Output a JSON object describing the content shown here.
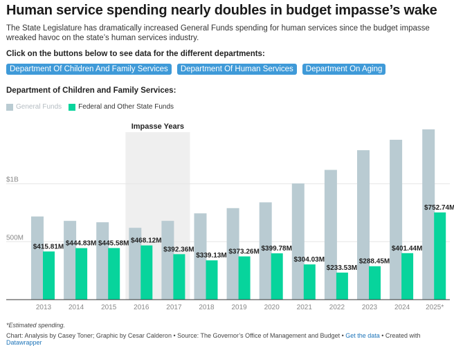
{
  "title": "Human service spending nearly doubles in budget impasse’s wake",
  "subtitle": "The State Legislature has dramatically increased General Funds spending for human services since the budget impasse wreaked havoc on the state’s human services industry.",
  "prompt": "Click on the buttons below to see data for the different departments:",
  "buttons": [
    "Department Of Children And Family Services",
    "Department Of Human Services",
    "Department On Aging"
  ],
  "department_title": "Department of Children and Family Services:",
  "legend": {
    "general": "General Funds",
    "federal": "Federal and Other State Funds"
  },
  "colors": {
    "general": "#b9cbd2",
    "federal": "#07d49c",
    "button": "#3f9ad8",
    "impasse": "#efefef"
  },
  "impasse_label": "Impasse Years",
  "footnote": "*Estimated spending.",
  "credits": {
    "prefix": "Chart: Analysis by Casey Toner; Graphic by Cesar Calderon • Source: The Governor’s Office of Management and Budget • ",
    "get_data": "Get the data",
    "middle": " • Created with ",
    "datawrapper": "Datawrapper"
  },
  "chart_data": {
    "type": "bar",
    "categories": [
      "2013",
      "2014",
      "2015",
      "2016",
      "2017",
      "2018",
      "2019",
      "2020",
      "2021",
      "2022",
      "2023",
      "2024",
      "2025*"
    ],
    "series": [
      {
        "name": "General Funds",
        "values": [
          718,
          680,
          668,
          620,
          680,
          745,
          790,
          840,
          1003,
          1120,
          1290,
          1380,
          1470
        ]
      },
      {
        "name": "Federal and Other State Funds",
        "values": [
          415.81,
          444.83,
          445.58,
          468.12,
          392.36,
          339.13,
          373.26,
          399.78,
          304.03,
          233.53,
          288.45,
          401.44,
          752.74
        ]
      }
    ],
    "value_labels": [
      "$415.81M",
      "$444.83M",
      "$445.58M",
      "$468.12M",
      "$392.36M",
      "$339.13M",
      "$373.26M",
      "$399.78M",
      "$304.03M",
      "$233.53M",
      "$288.45M",
      "$401.44M",
      "$752.74M"
    ],
    "y_ticks": [
      {
        "value": 500,
        "label": "500M"
      },
      {
        "value": 1000,
        "label": "$1B"
      }
    ],
    "ylim": [
      0,
      1500
    ],
    "impasse_years": [
      "2016",
      "2017"
    ],
    "grid": true
  }
}
